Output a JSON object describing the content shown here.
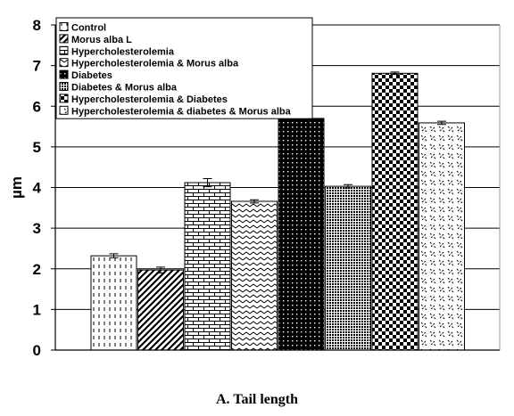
{
  "chart_data": {
    "type": "bar",
    "title": "",
    "caption": "A. Tail length",
    "xlabel": "",
    "ylabel": "µm",
    "ylim": [
      0,
      8
    ],
    "yticks": [
      "0",
      "1",
      "2",
      "3",
      "4",
      "5",
      "6",
      "7",
      "8"
    ],
    "grid": true,
    "legend_position": "top-left",
    "series": [
      {
        "name": "Control",
        "value": 2.32,
        "error": 0.05,
        "pattern": "dashes"
      },
      {
        "name": "Morus alba L",
        "value": 1.97,
        "error": 0.07,
        "pattern": "diagonal"
      },
      {
        "name": "Hypercholesterolemia",
        "value": 4.12,
        "error": 0.1,
        "pattern": "bricks"
      },
      {
        "name": "Hypercholesterolemia & Morus alba",
        "value": 3.66,
        "error": 0.04,
        "pattern": "zigzag"
      },
      {
        "name": "Diabetes",
        "value": 5.7,
        "error": 0.04,
        "pattern": "dots-dark"
      },
      {
        "name": "Diabetes & Morus alba",
        "value": 4.03,
        "error": 0.04,
        "pattern": "fine-dots"
      },
      {
        "name": "Hypercholesterolemia & Diabetes",
        "value": 6.81,
        "error": 0.03,
        "pattern": "checker"
      },
      {
        "name": "Hypercholesterolemia & diabetes & Morus alba",
        "value": 5.59,
        "error": 0.04,
        "pattern": "scatter"
      }
    ]
  }
}
